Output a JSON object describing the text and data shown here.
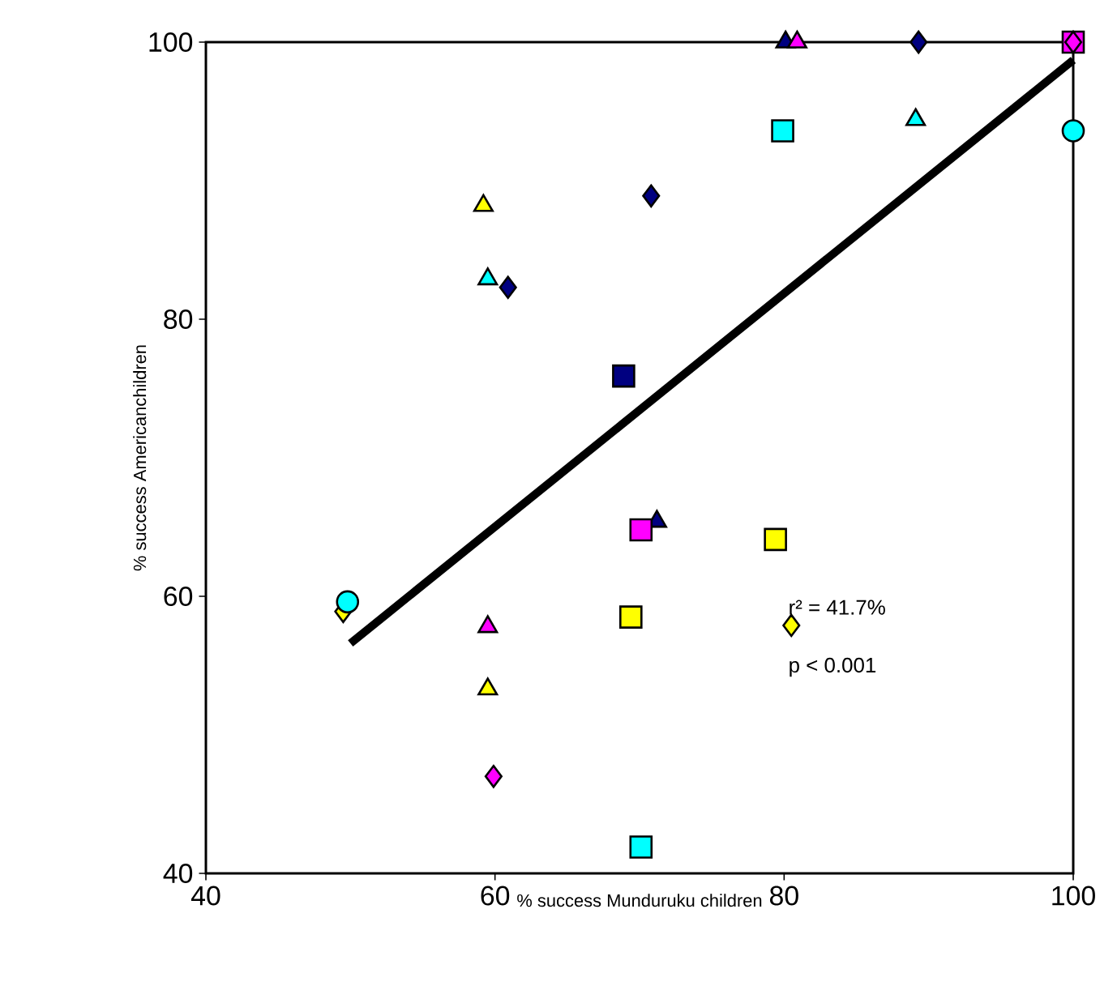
{
  "chart_data": {
    "type": "scatter",
    "xlabel": "% success Munduruku children",
    "ylabel": "% success Americanchildren",
    "xlim": [
      40,
      100
    ],
    "ylim": [
      40,
      100
    ],
    "xticks": [
      40,
      60,
      80,
      100
    ],
    "yticks": [
      40,
      60,
      80,
      100
    ],
    "annotations": [
      "r² = 41.7%",
      "p < 0.001"
    ],
    "series": [
      {
        "marker": "square",
        "color": "#000080",
        "x": [
          68.9
        ],
        "values": [
          75.9
        ]
      },
      {
        "marker": "diamond",
        "color": "#000080",
        "x": [
          60.9,
          70.8,
          89.3
        ],
        "values": [
          82.3,
          88.9,
          100
        ]
      },
      {
        "marker": "triangle",
        "color": "#000080",
        "x": [
          71.2,
          80.1
        ],
        "values": [
          65.4,
          100
        ]
      },
      {
        "marker": "diamond",
        "color": "#ffff00",
        "x": [
          49.5,
          80.5
        ],
        "values": [
          58.9,
          57.9
        ]
      },
      {
        "marker": "triangle",
        "color": "#ffff00",
        "x": [
          59.2,
          59.5
        ],
        "values": [
          88.2,
          53.3
        ]
      },
      {
        "marker": "square",
        "color": "#ffff00",
        "x": [
          69.4,
          79.4
        ],
        "values": [
          58.5,
          64.1
        ]
      },
      {
        "marker": "square",
        "color": "#ff00ff",
        "x": [
          70.1,
          100
        ],
        "values": [
          64.8,
          100
        ]
      },
      {
        "marker": "triangle",
        "color": "#ff00ff",
        "x": [
          59.5,
          80.9
        ],
        "values": [
          57.8,
          100
        ]
      },
      {
        "marker": "diamond",
        "color": "#ff00ff",
        "x": [
          59.9,
          100
        ],
        "values": [
          47.0,
          100
        ]
      },
      {
        "marker": "circle",
        "color": "#00ffff",
        "x": [
          49.8,
          100
        ],
        "values": [
          59.6,
          93.6
        ]
      },
      {
        "marker": "triangle",
        "color": "#00ffff",
        "x": [
          59.5,
          89.1
        ],
        "values": [
          82.9,
          94.4
        ]
      },
      {
        "marker": "square",
        "color": "#00ffff",
        "x": [
          79.9,
          70.1
        ],
        "values": [
          93.6,
          41.9
        ]
      },
      {
        "type": "line",
        "marker": "none",
        "line_style": "solid",
        "color": "#000000",
        "x": [
          50,
          100
        ],
        "values": [
          56.6,
          98.7
        ]
      }
    ]
  }
}
